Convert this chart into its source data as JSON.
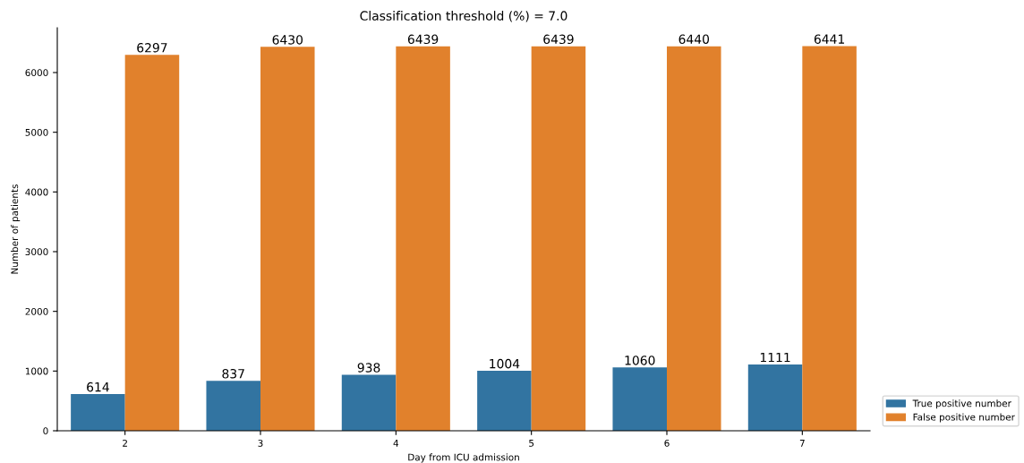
{
  "chart_data": {
    "type": "bar",
    "title": "Classification threshold (%) = 7.0",
    "xlabel": "Day from ICU admission",
    "ylabel": "Number of patients",
    "categories": [
      "2",
      "3",
      "4",
      "5",
      "6",
      "7"
    ],
    "series": [
      {
        "name": "True positive number",
        "color": "#3274a1",
        "values": [
          614,
          837,
          938,
          1004,
          1060,
          1111
        ]
      },
      {
        "name": "False positive number",
        "color": "#e1812c",
        "values": [
          6297,
          6430,
          6439,
          6439,
          6440,
          6441
        ]
      }
    ],
    "ylim": [
      0,
      6750
    ],
    "yticks": [
      0,
      1000,
      2000,
      3000,
      4000,
      5000,
      6000
    ],
    "data_labels": true,
    "grid": false,
    "legend": "bottom right"
  }
}
